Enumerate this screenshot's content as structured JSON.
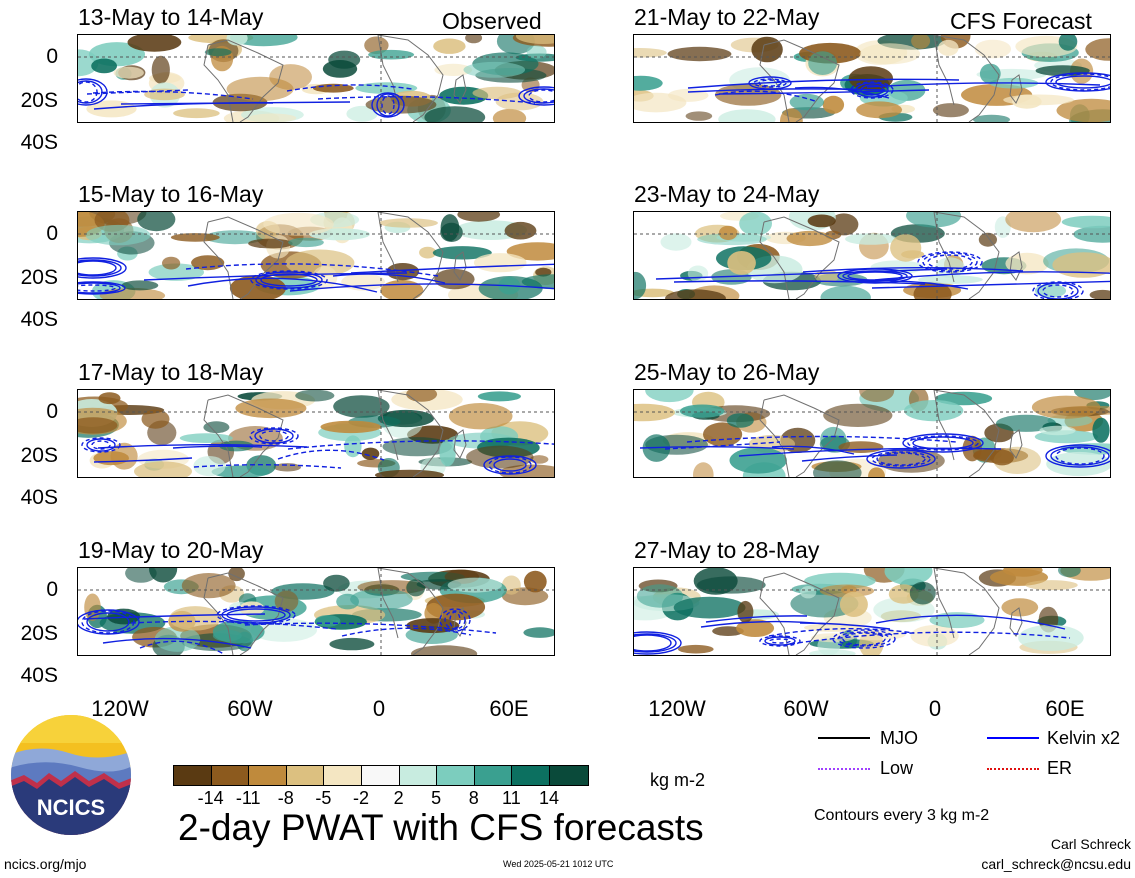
{
  "left_panels": [
    {
      "date": "13-May to 14-May",
      "tag": "Observed"
    },
    {
      "date": "15-May to 16-May",
      "tag": ""
    },
    {
      "date": "17-May to 18-May",
      "tag": ""
    },
    {
      "date": "19-May to 20-May",
      "tag": ""
    }
  ],
  "right_panels": [
    {
      "date": "21-May to 22-May",
      "tag": "CFS Forecast"
    },
    {
      "date": "23-May to 24-May",
      "tag": ""
    },
    {
      "date": "25-May to 26-May",
      "tag": ""
    },
    {
      "date": "27-May to 28-May",
      "tag": ""
    }
  ],
  "y_labels": [
    "0",
    "20S",
    "40S"
  ],
  "x_labels": [
    "120W",
    "60W",
    "0",
    "60E"
  ],
  "colorbar": {
    "colors": [
      "#5a3a12",
      "#8c5a1e",
      "#bf8a3c",
      "#dcc080",
      "#f4e6c2",
      "#f8f8f8",
      "#c8ece0",
      "#7ccdbe",
      "#3aa090",
      "#0c7060",
      "#0a4a3a"
    ],
    "labels": [
      "-14",
      "-11",
      "-8",
      "-5",
      "-2",
      "2",
      "5",
      "8",
      "11",
      "14"
    ],
    "units": "kg m-2"
  },
  "legend": [
    {
      "label": "MJO",
      "color": "#000000"
    },
    {
      "label": "Kelvin x2",
      "color": "#0000ff"
    },
    {
      "label": "Low",
      "color": "#a040ff"
    },
    {
      "label": "ER",
      "color": "#e01010"
    }
  ],
  "contour_note": "Contours every 3 kg m-2",
  "main_title": "2-day PWAT with CFS forecasts",
  "logo_text": "NCICS",
  "footer": {
    "url": "ncics.org/mjo",
    "timestamp": "Wed 2025-05-21 1012 UTC",
    "author": "Carl Schreck",
    "email": "carl_schreck@ncsu.edu"
  }
}
